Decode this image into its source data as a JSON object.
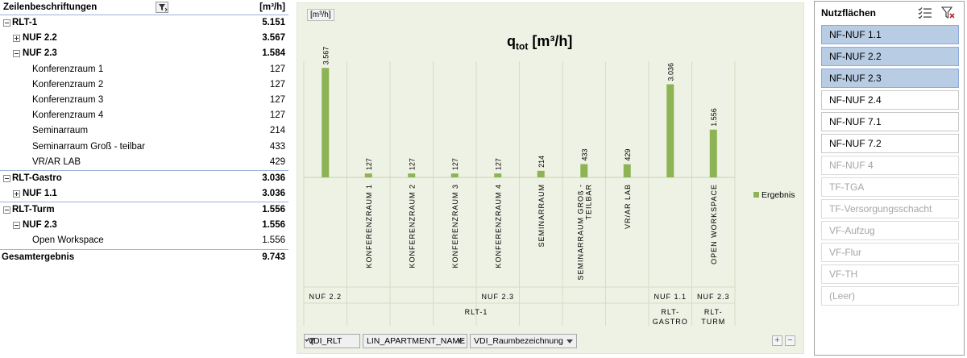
{
  "pivot": {
    "header": {
      "label": "Zeilenbeschriftungen",
      "unit": "[m³/h]"
    },
    "rows": [
      {
        "label": "RLT-1",
        "value": "5.151"
      },
      {
        "label": "NUF 2.2",
        "value": "3.567"
      },
      {
        "label": "NUF 2.3",
        "value": "1.584"
      },
      {
        "label": "Konferenzraum 1",
        "value": "127"
      },
      {
        "label": "Konferenzraum 2",
        "value": "127"
      },
      {
        "label": "Konferenzraum 3",
        "value": "127"
      },
      {
        "label": "Konferenzraum 4",
        "value": "127"
      },
      {
        "label": "Seminarraum",
        "value": "214"
      },
      {
        "label": "Seminarraum Groß - teilbar",
        "value": "433"
      },
      {
        "label": "VR/AR LAB",
        "value": "429"
      },
      {
        "label": "RLT-Gastro",
        "value": "3.036"
      },
      {
        "label": "NUF 1.1",
        "value": "3.036"
      },
      {
        "label": "RLT-Turm",
        "value": "1.556"
      },
      {
        "label": "NUF 2.3",
        "value": "1.556"
      },
      {
        "label": "Open Workspace",
        "value": "1.556"
      }
    ],
    "total": {
      "label": "Gesamtergebnis",
      "value": "9.743"
    }
  },
  "chart": {
    "unit_tag": "[m³/h]",
    "title_main": "q",
    "title_sub": "tot",
    "title_unit": " [m³/h]",
    "legend": "Ergebnis",
    "field_buttons": [
      "VDI_RLT",
      "LIN_APARTMENT_NAME",
      "VDI_Raumbezeichnung"
    ],
    "zoom_in": "+",
    "zoom_out": "−"
  },
  "chart_data": {
    "type": "bar",
    "title": "qtot [m³/h]",
    "categories": [
      "",
      "KONFERENZRAUM 1",
      "KONFERENZRAUM 2",
      "KONFERENZRAUM 3",
      "KONFERENZRAUM 4",
      "SEMINARRAUM",
      "SEMINARRAUM GROß - TEILBAR",
      "VR/AR LAB",
      "",
      "OPEN WORKSPACE"
    ],
    "values": [
      3567,
      127,
      127,
      127,
      127,
      214,
      433,
      429,
      3036,
      1556
    ],
    "value_labels": [
      "3.567",
      "127",
      "127",
      "127",
      "127",
      "214",
      "433",
      "429",
      "3.036",
      "1.556"
    ],
    "group_level2": [
      {
        "label": "NUF 2.2",
        "span": 1
      },
      {
        "label": "NUF 2.3",
        "span": 7
      },
      {
        "label": "NUF 1.1",
        "span": 1
      },
      {
        "label": "NUF 2.3",
        "span": 1
      }
    ],
    "group_level1": [
      {
        "label": "RLT-1",
        "span": 8
      },
      {
        "label": "RLT-GASTRO",
        "span": 1
      },
      {
        "label": "RLT-TURM",
        "span": 1
      }
    ],
    "series": [
      {
        "name": "Ergebnis",
        "values": [
          3567,
          127,
          127,
          127,
          127,
          214,
          433,
          429,
          3036,
          1556
        ]
      }
    ],
    "ylim": [
      0,
      4100
    ],
    "legend_position": "right",
    "bar_color": "#8db354"
  },
  "slicer": {
    "title": "Nutzflächen",
    "items": [
      {
        "label": "NF-NUF 1.1",
        "state": "selected"
      },
      {
        "label": "NF-NUF 2.2",
        "state": "selected"
      },
      {
        "label": "NF-NUF 2.3",
        "state": "selected"
      },
      {
        "label": "NF-NUF 2.4",
        "state": "normal"
      },
      {
        "label": "NF-NUF 7.1",
        "state": "normal"
      },
      {
        "label": "NF-NUF 7.2",
        "state": "normal"
      },
      {
        "label": "NF-NUF 4",
        "state": "nodata"
      },
      {
        "label": "TF-TGA",
        "state": "nodata"
      },
      {
        "label": "TF-Versorgungsschacht",
        "state": "nodata"
      },
      {
        "label": "VF-Aufzug",
        "state": "nodata"
      },
      {
        "label": "VF-Flur",
        "state": "nodata"
      },
      {
        "label": "VF-TH",
        "state": "nodata"
      },
      {
        "label": "(Leer)",
        "state": "nodata"
      }
    ]
  }
}
